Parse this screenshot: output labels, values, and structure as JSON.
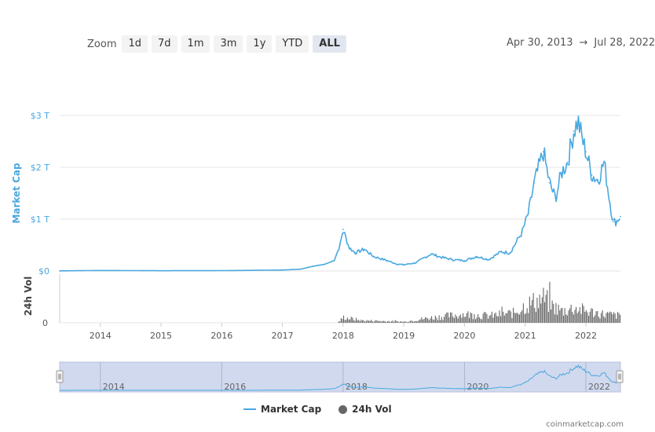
{
  "zoom": {
    "label": "Zoom",
    "buttons": [
      "1d",
      "7d",
      "1m",
      "3m",
      "1y",
      "YTD",
      "ALL"
    ],
    "active": "ALL"
  },
  "date_range": {
    "from": "Apr 30, 2013",
    "separator": "→",
    "to": "Jul 28, 2022"
  },
  "colors": {
    "market_cap": "#4aa8e0",
    "volume": "#666666",
    "navigator_mask": "#c6d0ea"
  },
  "legend": {
    "market_cap": "Market Cap",
    "volume": "24h Vol"
  },
  "credit": "coinmarketcap.com",
  "chart_data": {
    "type": "line",
    "ylabel": "Market Cap",
    "y2label": "24h Vol",
    "y_ticks": [
      "$0",
      "$1 T",
      "$2 T",
      "$3 T"
    ],
    "y2_ticks": [
      "0"
    ],
    "ylim": [
      0,
      3
    ],
    "xlim": [
      2013.33,
      2022.57
    ],
    "x_ticks": [
      "2014",
      "2015",
      "2016",
      "2017",
      "2018",
      "2019",
      "2020",
      "2021",
      "2022"
    ],
    "navigator_ticks": [
      "2014",
      "2016",
      "2018",
      "2020",
      "2022"
    ],
    "legend_position": "bottom",
    "series": [
      {
        "name": "Market Cap",
        "unit": "trillion USD",
        "x": [
          2013.33,
          2014.0,
          2015.0,
          2016.0,
          2017.0,
          2017.3,
          2017.5,
          2017.7,
          2017.85,
          2017.95,
          2018.0,
          2018.1,
          2018.2,
          2018.35,
          2018.5,
          2018.7,
          2018.9,
          2019.0,
          2019.2,
          2019.45,
          2019.6,
          2019.8,
          2020.0,
          2020.2,
          2020.4,
          2020.6,
          2020.75,
          2020.85,
          2020.95,
          2021.05,
          2021.15,
          2021.3,
          2021.4,
          2021.5,
          2021.6,
          2021.7,
          2021.8,
          2021.87,
          2021.95,
          2022.0,
          2022.1,
          2022.2,
          2022.3,
          2022.4,
          2022.45,
          2022.5,
          2022.57
        ],
        "values": [
          0.002,
          0.01,
          0.005,
          0.007,
          0.018,
          0.035,
          0.09,
          0.13,
          0.2,
          0.5,
          0.8,
          0.45,
          0.35,
          0.42,
          0.28,
          0.21,
          0.13,
          0.12,
          0.16,
          0.33,
          0.27,
          0.22,
          0.2,
          0.28,
          0.22,
          0.37,
          0.35,
          0.55,
          0.75,
          1.1,
          1.7,
          2.3,
          1.7,
          1.4,
          1.9,
          2.1,
          2.7,
          2.9,
          2.5,
          2.3,
          1.85,
          1.75,
          2.1,
          1.3,
          0.95,
          0.95,
          1.05
        ]
      },
      {
        "name": "24h Vol",
        "unit": "relative",
        "x": [
          2013.33,
          2017.9,
          2018.0,
          2018.3,
          2019.0,
          2019.3,
          2019.6,
          2020.0,
          2020.4,
          2020.8,
          2021.0,
          2021.3,
          2021.45,
          2021.6,
          2021.8,
          2022.0,
          2022.3,
          2022.57
        ],
        "values": [
          0.0,
          0.0,
          0.14,
          0.06,
          0.03,
          0.1,
          0.16,
          0.22,
          0.18,
          0.25,
          0.45,
          0.62,
          0.42,
          0.3,
          0.38,
          0.3,
          0.22,
          0.18
        ]
      }
    ]
  }
}
